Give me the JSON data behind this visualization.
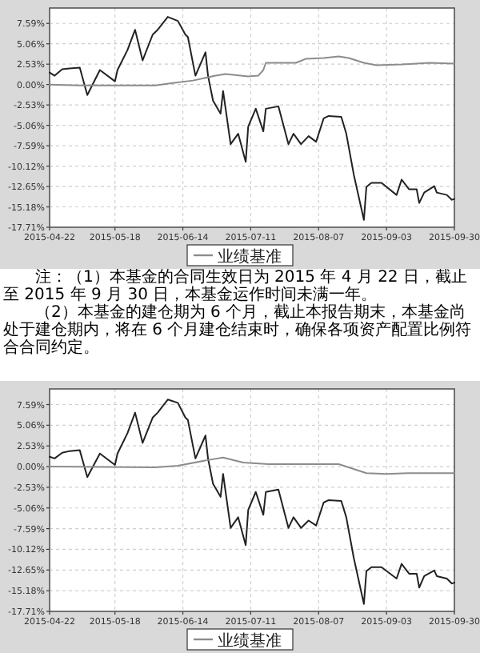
{
  "chart_data": [
    {
      "type": "line",
      "xlim": [
        "2015-04-22",
        "2015-09-30"
      ],
      "xticks": [
        "2015-04-22",
        "2015-05-18",
        "2015-06-14",
        "2015-07-11",
        "2015-08-07",
        "2015-09-03",
        "2015-09-30"
      ],
      "ylim": [
        -17.71,
        9.5
      ],
      "yticks": [
        {
          "value": 7.59,
          "label": "7.59%"
        },
        {
          "value": 5.06,
          "label": "5.06%"
        },
        {
          "value": 2.53,
          "label": "2.53%"
        },
        {
          "value": 0,
          "label": "0.00%"
        },
        {
          "value": -2.53,
          "label": "-2.53%"
        },
        {
          "value": -5.06,
          "label": "-5.06%"
        },
        {
          "value": -7.59,
          "label": "-7.59%"
        },
        {
          "value": -10.12,
          "label": "-10.12%"
        },
        {
          "value": -12.65,
          "label": "-12.65%"
        },
        {
          "value": -15.18,
          "label": "-15.18%"
        },
        {
          "value": -17.71,
          "label": "-17.71%"
        }
      ],
      "grid": true,
      "legend": "bottom",
      "series": [
        {
          "color": "#222222",
          "x": [
            "2015-04-22",
            "2015-04-24",
            "2015-04-27",
            "2015-04-30",
            "2015-05-04",
            "2015-05-07",
            "2015-05-12",
            "2015-05-18",
            "2015-05-19",
            "2015-05-23",
            "2015-05-26",
            "2015-05-29",
            "2015-06-02",
            "2015-06-04",
            "2015-06-08",
            "2015-06-12",
            "2015-06-15",
            "2015-06-16",
            "2015-06-19",
            "2015-06-23",
            "2015-06-24",
            "2015-06-26",
            "2015-06-29",
            "2015-06-30",
            "2015-07-03",
            "2015-07-06",
            "2015-07-09",
            "2015-07-10",
            "2015-07-13",
            "2015-07-16",
            "2015-07-17",
            "2015-07-22",
            "2015-07-26",
            "2015-07-28",
            "2015-07-31",
            "2015-08-03",
            "2015-08-06",
            "2015-08-09",
            "2015-08-11",
            "2015-08-16",
            "2015-08-18",
            "2015-08-21",
            "2015-08-25",
            "2015-08-26",
            "2015-08-28",
            "2015-09-01",
            "2015-09-07",
            "2015-09-09",
            "2015-09-12",
            "2015-09-15",
            "2015-09-16",
            "2015-09-18",
            "2015-09-22",
            "2015-09-23",
            "2015-09-27",
            "2015-09-29",
            "2015-09-30"
          ],
          "values": [
            1.5,
            1.1,
            1.9,
            2,
            2.1,
            -1.3,
            1.8,
            0.4,
            1.8,
            4.3,
            6.8,
            3,
            6.2,
            6.8,
            8.4,
            7.9,
            6.2,
            5.9,
            1.1,
            4,
            1.1,
            -2,
            -3.6,
            -0.8,
            -7.4,
            -6.1,
            -9.6,
            -5.2,
            -3,
            -5.8,
            -3,
            -2.7,
            -7.4,
            -6.1,
            -7.4,
            -6.4,
            -7.1,
            -4.2,
            -3.9,
            -4,
            -6.1,
            -11.2,
            -16.8,
            -12.7,
            -12.2,
            -12.2,
            -13.7,
            -11.8,
            -13,
            -13,
            -14.7,
            -13.4,
            -12.6,
            -13.4,
            -13.7,
            -14.3,
            -14.2
          ]
        },
        {
          "name": "业绩基准",
          "color": "#8c8c8c",
          "x": [
            "2015-04-22",
            "2015-05-04",
            "2015-06-03",
            "2015-06-10",
            "2015-06-18",
            "2015-06-27",
            "2015-07-01",
            "2015-07-10",
            "2015-07-14",
            "2015-07-16",
            "2015-07-17",
            "2015-07-29",
            "2015-08-02",
            "2015-08-09",
            "2015-08-15",
            "2015-08-19",
            "2015-08-25",
            "2015-08-30",
            "2015-09-09",
            "2015-09-20",
            "2015-09-30"
          ],
          "values": [
            0,
            -0.1,
            -0.1,
            0.2,
            0.5,
            1.1,
            1.3,
            1,
            1.1,
            1.8,
            2.7,
            2.7,
            3.2,
            3.3,
            3.5,
            3.3,
            2.7,
            2.4,
            2.5,
            2.7,
            2.6
          ]
        }
      ],
      "annotations": [
        "注：（1）本基金的合同生效日为 2015 年 4 月 22 日，截止至 2015 年 9 月 30 日，本基金运作时间未满一年。",
        "（2）本基金的建仓期为 6 个月，截止本报告期末，本基金尚处于建仓期内，将在 6 个月建仓结束时，确保各项资产配置比例符合合同约定。"
      ]
    },
    {
      "type": "line",
      "xlim": [
        "2015-04-22",
        "2015-09-30"
      ],
      "xticks": [
        "2015-04-22",
        "2015-05-18",
        "2015-06-14",
        "2015-07-11",
        "2015-08-07",
        "2015-09-03",
        "2015-09-30"
      ],
      "ylim": [
        -17.71,
        9.5
      ],
      "yticks": [
        {
          "value": 7.59,
          "label": "7.59%"
        },
        {
          "value": 5.06,
          "label": "5.06%"
        },
        {
          "value": 2.53,
          "label": "2.53%"
        },
        {
          "value": 0,
          "label": "0.00%"
        },
        {
          "value": -2.53,
          "label": "-2.53%"
        },
        {
          "value": -5.06,
          "label": "-5.06%"
        },
        {
          "value": -7.59,
          "label": "-7.59%"
        },
        {
          "value": -10.12,
          "label": "-10.12%"
        },
        {
          "value": -12.65,
          "label": "-12.65%"
        },
        {
          "value": -15.18,
          "label": "-15.18%"
        },
        {
          "value": -17.71,
          "label": "-17.71%"
        }
      ],
      "grid": true,
      "legend": "bottom",
      "series": [
        {
          "color": "#222222",
          "x": [
            "2015-04-22",
            "2015-04-24",
            "2015-04-27",
            "2015-04-30",
            "2015-05-04",
            "2015-05-07",
            "2015-05-12",
            "2015-05-18",
            "2015-05-19",
            "2015-05-23",
            "2015-05-26",
            "2015-05-29",
            "2015-06-02",
            "2015-06-04",
            "2015-06-08",
            "2015-06-12",
            "2015-06-15",
            "2015-06-16",
            "2015-06-19",
            "2015-06-23",
            "2015-06-24",
            "2015-06-26",
            "2015-06-29",
            "2015-06-30",
            "2015-07-03",
            "2015-07-06",
            "2015-07-09",
            "2015-07-10",
            "2015-07-13",
            "2015-07-16",
            "2015-07-17",
            "2015-07-22",
            "2015-07-26",
            "2015-07-28",
            "2015-07-31",
            "2015-08-03",
            "2015-08-06",
            "2015-08-09",
            "2015-08-11",
            "2015-08-16",
            "2015-08-18",
            "2015-08-21",
            "2015-08-25",
            "2015-08-26",
            "2015-08-28",
            "2015-09-01",
            "2015-09-07",
            "2015-09-09",
            "2015-09-12",
            "2015-09-15",
            "2015-09-16",
            "2015-09-18",
            "2015-09-22",
            "2015-09-23",
            "2015-09-27",
            "2015-09-29",
            "2015-09-30"
          ],
          "values": [
            1.2,
            1,
            1.7,
            1.9,
            2,
            -1.3,
            1.6,
            0.2,
            1.6,
            4.1,
            6.6,
            2.9,
            6.0,
            6.6,
            8.2,
            7.8,
            6.0,
            5.7,
            1.0,
            3.8,
            1.0,
            -2.1,
            -3.7,
            -0.9,
            -7.5,
            -6.2,
            -9.6,
            -5.3,
            -3.1,
            -5.9,
            -3.1,
            -2.8,
            -7.5,
            -6.2,
            -7.5,
            -6.6,
            -7.2,
            -4.4,
            -4.1,
            -4.2,
            -6.2,
            -11.2,
            -16.8,
            -12.8,
            -12.3,
            -12.3,
            -13.7,
            -11.9,
            -13.1,
            -13.1,
            -14.8,
            -13.4,
            -12.7,
            -13.4,
            -13.7,
            -14.3,
            -14.2
          ]
        },
        {
          "name": "业绩基准",
          "color": "#8c8c8c",
          "x": [
            "2015-04-22",
            "2015-06-03",
            "2015-06-12",
            "2015-06-24",
            "2015-06-30",
            "2015-07-08",
            "2015-07-18",
            "2015-07-27",
            "2015-08-09",
            "2015-08-15",
            "2015-08-26",
            "2015-09-03",
            "2015-09-12",
            "2015-09-20",
            "2015-09-30"
          ],
          "values": [
            0,
            -0.1,
            0.1,
            0.8,
            1.1,
            0.5,
            0.3,
            0.3,
            0.3,
            0.3,
            -0.8,
            -0.9,
            -0.8,
            -0.8,
            -0.8
          ]
        }
      ]
    }
  ]
}
